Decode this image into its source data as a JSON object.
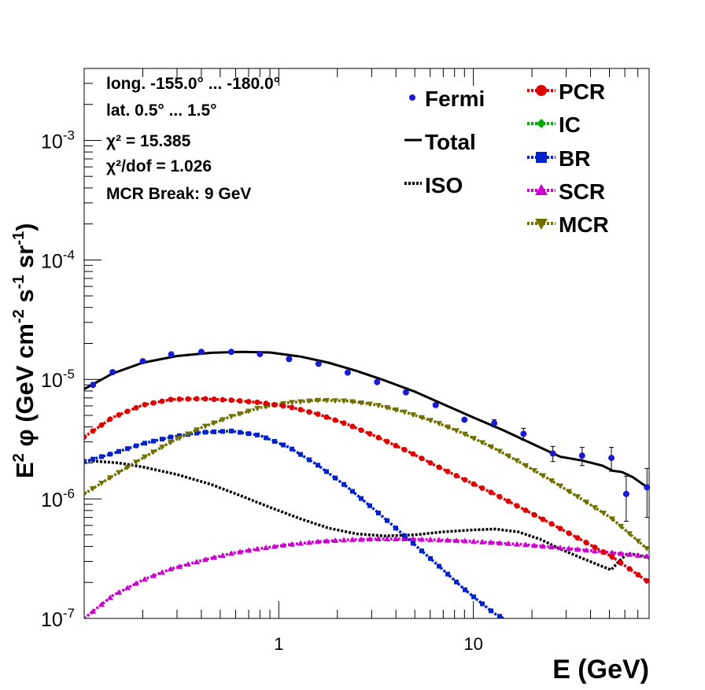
{
  "chart_data": {
    "type": "line",
    "xlabel": "E (GeV)",
    "ylabel": "E^2 φ (GeV cm^-2 s^-1 sr^-1)",
    "x_scale": "log",
    "y_scale": "log",
    "xlim": [
      0.1,
      80
    ],
    "ylim": [
      1e-07,
      0.004
    ],
    "x_tick_labels": [
      {
        "value": 1,
        "label": "1"
      },
      {
        "value": 10,
        "label": "10"
      }
    ],
    "y_tick_labels": [
      {
        "value": 1e-07,
        "base": "10",
        "exp": "-7"
      },
      {
        "value": 1e-06,
        "base": "10",
        "exp": "-6"
      },
      {
        "value": 1e-05,
        "base": "10",
        "exp": "-5"
      },
      {
        "value": 0.0001,
        "base": "10",
        "exp": "-4"
      },
      {
        "value": 0.001,
        "base": "10",
        "exp": "-3"
      }
    ],
    "info_text": {
      "longitude": "long. -155.0° ... -180.0°",
      "latitude": "lat. 0.5° ... 1.5°",
      "chi2": "χ² = 15.385",
      "chi2_dof": "χ²/dof = 1.026",
      "mcr_break": "MCR Break:  9 GeV"
    },
    "legend_left": [
      "Fermi",
      "Total",
      "ISO"
    ],
    "legend_right": [
      "PCR",
      "IC",
      "BR",
      "SCR",
      "MCR"
    ],
    "colors": {
      "Fermi": "#1a1ad0",
      "Total": "#000000",
      "ISO": "#000000",
      "PCR": "#dd0000",
      "IC": "#00aa00",
      "BR": "#0022cc",
      "SCR": "#cc00cc",
      "MCR": "#707000"
    },
    "fermi": [
      {
        "x": 0.111,
        "y": 9e-06,
        "err": 0
      },
      {
        "x": 0.14,
        "y": 1.15e-05,
        "err": 0
      },
      {
        "x": 0.2,
        "y": 1.42e-05,
        "err": 0
      },
      {
        "x": 0.28,
        "y": 1.62e-05,
        "err": 0
      },
      {
        "x": 0.4,
        "y": 1.7e-05,
        "err": 0
      },
      {
        "x": 0.57,
        "y": 1.7e-05,
        "err": 0
      },
      {
        "x": 0.8,
        "y": 1.63e-05,
        "err": 0
      },
      {
        "x": 1.13,
        "y": 1.48e-05,
        "err": 0
      },
      {
        "x": 1.6,
        "y": 1.35e-05,
        "err": 0
      },
      {
        "x": 2.26,
        "y": 1.14e-05,
        "err": 0
      },
      {
        "x": 3.2,
        "y": 9.5e-06,
        "err": 0
      },
      {
        "x": 4.5,
        "y": 7.8e-06,
        "err": 0
      },
      {
        "x": 6.4,
        "y": 6.1e-06,
        "err": 0
      },
      {
        "x": 9.0,
        "y": 4.6e-06,
        "err": 0
      },
      {
        "x": 12.8,
        "y": 4.3e-06,
        "err": 3e-07
      },
      {
        "x": 18.1,
        "y": 3.5e-06,
        "err": 4e-07
      },
      {
        "x": 25.6,
        "y": 2.4e-06,
        "err": 3.5e-07
      },
      {
        "x": 36.2,
        "y": 2.3e-06,
        "err": 4e-07
      },
      {
        "x": 51.2,
        "y": 2.2e-06,
        "err": 5e-07
      },
      {
        "x": 61.0,
        "y": 1.1e-06,
        "err": 4.5e-07
      },
      {
        "x": 78.0,
        "y": 1.25e-06,
        "err": 5.5e-07
      }
    ],
    "total": [
      [
        0.1,
        8.3e-06
      ],
      [
        0.14,
        1.12e-05
      ],
      [
        0.2,
        1.38e-05
      ],
      [
        0.3,
        1.57e-05
      ],
      [
        0.45,
        1.67e-05
      ],
      [
        0.65,
        1.7e-05
      ],
      [
        0.9,
        1.68e-05
      ],
      [
        1.3,
        1.55e-05
      ],
      [
        1.8,
        1.38e-05
      ],
      [
        2.5,
        1.18e-05
      ],
      [
        3.5,
        9.8e-06
      ],
      [
        5,
        7.9e-06
      ],
      [
        7,
        6.2e-06
      ],
      [
        10,
        4.8e-06
      ],
      [
        14,
        3.8e-06
      ],
      [
        20,
        2.9e-06
      ],
      [
        28,
        2.25e-06
      ],
      [
        36,
        2.1e-06
      ],
      [
        46,
        1.9e-06
      ],
      [
        52,
        1.72e-06
      ],
      [
        58,
        1.68e-06
      ],
      [
        66,
        1.52e-06
      ],
      [
        80,
        1.22e-06
      ]
    ],
    "iso": [
      [
        0.1,
        2.1e-06
      ],
      [
        0.15,
        2e-06
      ],
      [
        0.2,
        1.85e-06
      ],
      [
        0.3,
        1.6e-06
      ],
      [
        0.45,
        1.32e-06
      ],
      [
        0.65,
        1.05e-06
      ],
      [
        0.9,
        8.5e-07
      ],
      [
        1.3,
        6.8e-07
      ],
      [
        1.8,
        5.7e-07
      ],
      [
        2.5,
        5.1e-07
      ],
      [
        3.5,
        4.9e-07
      ],
      [
        5,
        5e-07
      ],
      [
        7,
        5.3e-07
      ],
      [
        10,
        5.5e-07
      ],
      [
        13,
        5.6e-07
      ],
      [
        17,
        5.3e-07
      ],
      [
        22,
        4.6e-07
      ],
      [
        28,
        3.8e-07
      ],
      [
        36,
        3.2e-07
      ],
      [
        44,
        2.8e-07
      ],
      [
        51,
        2.55e-07
      ],
      [
        56,
        3e-07
      ],
      [
        62,
        3.5e-07
      ],
      [
        70,
        3.4e-07
      ],
      [
        80,
        3.2e-07
      ]
    ],
    "pcr": [
      [
        0.1,
        3.3e-06
      ],
      [
        0.14,
        4.8e-06
      ],
      [
        0.2,
        6.1e-06
      ],
      [
        0.28,
        6.8e-06
      ],
      [
        0.4,
        6.9e-06
      ],
      [
        0.57,
        6.7e-06
      ],
      [
        0.8,
        6.4e-06
      ],
      [
        1.13,
        5.9e-06
      ],
      [
        1.6,
        5.1e-06
      ],
      [
        2.26,
        4.2e-06
      ],
      [
        3.2,
        3.3e-06
      ],
      [
        4.5,
        2.55e-06
      ],
      [
        6.4,
        1.9e-06
      ],
      [
        9,
        1.45e-06
      ],
      [
        12.8,
        1.1e-06
      ],
      [
        18.1,
        8.2e-07
      ],
      [
        25.6,
        6.1e-07
      ],
      [
        36.2,
        4.5e-07
      ],
      [
        51.2,
        3.3e-07
      ],
      [
        80,
        2e-07
      ]
    ],
    "br": [
      [
        0.1,
        2.05e-06
      ],
      [
        0.14,
        2.4e-06
      ],
      [
        0.2,
        2.9e-06
      ],
      [
        0.28,
        3.3e-06
      ],
      [
        0.4,
        3.6e-06
      ],
      [
        0.57,
        3.7e-06
      ],
      [
        0.8,
        3.4e-06
      ],
      [
        1.13,
        2.7e-06
      ],
      [
        1.6,
        1.9e-06
      ],
      [
        2.26,
        1.25e-06
      ],
      [
        3.2,
        7.8e-07
      ],
      [
        4.5,
        4.8e-07
      ],
      [
        6.4,
        2.9e-07
      ],
      [
        9,
        1.75e-07
      ],
      [
        12.8,
        1.1e-07
      ],
      [
        14.3,
        1e-07
      ]
    ],
    "scr": [
      [
        0.1,
        1e-07
      ],
      [
        0.14,
        1.55e-07
      ],
      [
        0.2,
        2.1e-07
      ],
      [
        0.28,
        2.6e-07
      ],
      [
        0.4,
        3.05e-07
      ],
      [
        0.57,
        3.5e-07
      ],
      [
        0.8,
        3.85e-07
      ],
      [
        1.13,
        4.15e-07
      ],
      [
        1.6,
        4.4e-07
      ],
      [
        2.26,
        4.55e-07
      ],
      [
        3.2,
        4.62e-07
      ],
      [
        4.5,
        4.62e-07
      ],
      [
        6.4,
        4.55e-07
      ],
      [
        9,
        4.45e-07
      ],
      [
        12.8,
        4.3e-07
      ],
      [
        18.1,
        4.15e-07
      ],
      [
        25.6,
        3.95e-07
      ],
      [
        36.2,
        3.75e-07
      ],
      [
        51.2,
        3.55e-07
      ],
      [
        80,
        3.3e-07
      ]
    ],
    "mcr": [
      [
        0.1,
        1.1e-06
      ],
      [
        0.14,
        1.55e-06
      ],
      [
        0.2,
        2.2e-06
      ],
      [
        0.28,
        3e-06
      ],
      [
        0.4,
        3.95e-06
      ],
      [
        0.57,
        4.9e-06
      ],
      [
        0.8,
        5.8e-06
      ],
      [
        1.13,
        6.4e-06
      ],
      [
        1.6,
        6.7e-06
      ],
      [
        2.26,
        6.6e-06
      ],
      [
        3.2,
        6.1e-06
      ],
      [
        4.5,
        5.3e-06
      ],
      [
        6.4,
        4.4e-06
      ],
      [
        9,
        3.5e-06
      ],
      [
        12.8,
        2.65e-06
      ],
      [
        18.1,
        1.95e-06
      ],
      [
        25.6,
        1.4e-06
      ],
      [
        36.2,
        9.9e-07
      ],
      [
        51.2,
        6.9e-07
      ],
      [
        80,
        3.7e-07
      ]
    ]
  }
}
